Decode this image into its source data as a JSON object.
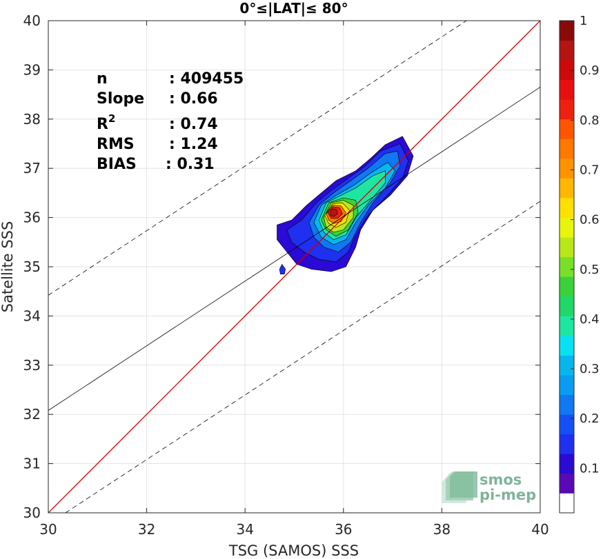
{
  "chart_data": {
    "type": "scatter",
    "title": "0°≤|LAT|≤ 80°",
    "xlabel": "TSG (SAMOS) SSS",
    "ylabel": "Satellite SSS",
    "xlim": [
      30,
      40
    ],
    "ylim": [
      30,
      40
    ],
    "xticks": [
      30,
      32,
      34,
      36,
      38,
      40
    ],
    "yticks": [
      30,
      31,
      32,
      33,
      34,
      35,
      36,
      37,
      38,
      39,
      40
    ],
    "grid": true,
    "statistics": [
      {
        "name": "n",
        "value": ": 409455"
      },
      {
        "name": "Slope",
        "value": ": 0.66"
      },
      {
        "name": "R2",
        "value": ": 0.74"
      },
      {
        "name": "RMS",
        "value": ": 1.24"
      },
      {
        "name": "BIAS",
        "value": ": 0.31"
      }
    ],
    "identity_line": {
      "slope": 1,
      "intercept": 0,
      "color": "#cc0000"
    },
    "fit_line": {
      "points": [
        [
          30,
          32.08
        ],
        [
          40,
          38.65
        ]
      ],
      "color": "#000000"
    },
    "error_bounds": [
      {
        "points": [
          [
            30,
            34.42
          ],
          [
            38.5,
            40.0
          ]
        ],
        "style": "dashed"
      },
      {
        "points": [
          [
            30.35,
            30.0
          ],
          [
            40,
            36.33
          ]
        ],
        "style": "dashed"
      }
    ],
    "density_contours": [
      {
        "level": 0.05,
        "color": "#2a0ad4",
        "points": [
          [
            34.65,
            35.85
          ],
          [
            34.95,
            35.95
          ],
          [
            35.25,
            36.25
          ],
          [
            35.55,
            36.5
          ],
          [
            35.85,
            36.75
          ],
          [
            36.25,
            36.95
          ],
          [
            36.55,
            37.2
          ],
          [
            36.85,
            37.48
          ],
          [
            37.2,
            37.65
          ],
          [
            37.42,
            37.25
          ],
          [
            37.3,
            36.85
          ],
          [
            36.95,
            36.45
          ],
          [
            36.6,
            36.15
          ],
          [
            36.35,
            35.75
          ],
          [
            36.25,
            35.4
          ],
          [
            36.05,
            35.0
          ],
          [
            35.75,
            34.9
          ],
          [
            35.35,
            34.95
          ],
          [
            35.05,
            35.05
          ],
          [
            34.85,
            35.3
          ],
          [
            34.65,
            35.55
          ]
        ]
      },
      {
        "level": 0.1,
        "color": "#1f30f0",
        "points": [
          [
            34.85,
            35.75
          ],
          [
            35.15,
            35.95
          ],
          [
            35.45,
            36.3
          ],
          [
            35.75,
            36.55
          ],
          [
            36.1,
            36.8
          ],
          [
            36.45,
            37.05
          ],
          [
            36.75,
            37.35
          ],
          [
            37.15,
            37.5
          ],
          [
            37.32,
            37.15
          ],
          [
            37.2,
            36.8
          ],
          [
            36.85,
            36.4
          ],
          [
            36.5,
            36.05
          ],
          [
            36.25,
            35.65
          ],
          [
            36.1,
            35.3
          ],
          [
            35.85,
            35.1
          ],
          [
            35.5,
            35.15
          ],
          [
            35.2,
            35.3
          ],
          [
            34.95,
            35.5
          ]
        ]
      },
      {
        "level": 0.2,
        "color": "#0f78f2",
        "points": [
          [
            35.3,
            35.9
          ],
          [
            35.5,
            36.25
          ],
          [
            35.8,
            36.5
          ],
          [
            36.15,
            36.75
          ],
          [
            36.5,
            37.0
          ],
          [
            36.85,
            37.3
          ],
          [
            37.1,
            37.35
          ],
          [
            37.15,
            37.05
          ],
          [
            36.95,
            36.7
          ],
          [
            36.6,
            36.3
          ],
          [
            36.35,
            35.9
          ],
          [
            36.15,
            35.5
          ],
          [
            35.9,
            35.3
          ],
          [
            35.6,
            35.4
          ],
          [
            35.4,
            35.6
          ]
        ]
      },
      {
        "level": 0.3,
        "color": "#08b6ee",
        "points": [
          [
            35.4,
            35.9
          ],
          [
            35.55,
            36.25
          ],
          [
            35.85,
            36.45
          ],
          [
            36.2,
            36.65
          ],
          [
            36.55,
            36.9
          ],
          [
            36.9,
            37.12
          ],
          [
            37.05,
            36.95
          ],
          [
            36.85,
            36.6
          ],
          [
            36.5,
            36.25
          ],
          [
            36.25,
            35.9
          ],
          [
            36.05,
            35.55
          ],
          [
            35.8,
            35.45
          ],
          [
            35.55,
            35.6
          ]
        ]
      },
      {
        "level": 0.4,
        "color": "#1ee6a0",
        "points": [
          [
            35.5,
            35.95
          ],
          [
            35.65,
            36.3
          ],
          [
            35.95,
            36.45
          ],
          [
            36.25,
            36.6
          ],
          [
            36.6,
            36.85
          ],
          [
            36.85,
            36.95
          ],
          [
            36.85,
            36.7
          ],
          [
            36.55,
            36.35
          ],
          [
            36.25,
            36.0
          ],
          [
            36.05,
            35.65
          ],
          [
            35.8,
            35.55
          ],
          [
            35.6,
            35.7
          ]
        ]
      },
      {
        "level": 0.5,
        "color": "#3ad23a",
        "points": [
          [
            35.55,
            35.95
          ],
          [
            35.7,
            36.3
          ],
          [
            36.0,
            36.4
          ],
          [
            36.25,
            36.35
          ],
          [
            36.3,
            36.1
          ],
          [
            36.1,
            35.75
          ],
          [
            35.85,
            35.62
          ],
          [
            35.65,
            35.75
          ]
        ]
      },
      {
        "level": 0.6,
        "color": "#b8e81a",
        "points": [
          [
            35.6,
            36.0
          ],
          [
            35.75,
            36.3
          ],
          [
            36.0,
            36.35
          ],
          [
            36.2,
            36.25
          ],
          [
            36.2,
            36.0
          ],
          [
            36.0,
            35.75
          ],
          [
            35.8,
            35.7
          ],
          [
            35.65,
            35.8
          ]
        ]
      },
      {
        "level": 0.7,
        "color": "#ffe000",
        "points": [
          [
            35.62,
            36.05
          ],
          [
            35.78,
            36.28
          ],
          [
            35.98,
            36.3
          ],
          [
            36.12,
            36.15
          ],
          [
            36.05,
            35.9
          ],
          [
            35.85,
            35.8
          ],
          [
            35.7,
            35.88
          ]
        ]
      },
      {
        "level": 0.8,
        "color": "#ff7800",
        "points": [
          [
            35.65,
            36.08
          ],
          [
            35.78,
            36.25
          ],
          [
            35.95,
            36.24
          ],
          [
            36.05,
            36.1
          ],
          [
            35.95,
            35.92
          ],
          [
            35.8,
            35.88
          ],
          [
            35.7,
            35.95
          ]
        ]
      },
      {
        "level": 0.9,
        "color": "#ee2010",
        "points": [
          [
            35.68,
            36.1
          ],
          [
            35.78,
            36.22
          ],
          [
            35.92,
            36.2
          ],
          [
            35.98,
            36.08
          ],
          [
            35.88,
            35.98
          ],
          [
            35.75,
            35.98
          ]
        ]
      },
      {
        "level": 1.0,
        "color": "#b41414",
        "points": [
          [
            35.72,
            36.1
          ],
          [
            35.78,
            36.18
          ],
          [
            35.86,
            36.16
          ],
          [
            35.88,
            36.08
          ],
          [
            35.8,
            36.02
          ],
          [
            35.74,
            36.04
          ]
        ]
      }
    ],
    "isolated_blob": {
      "color": "#1f30f0",
      "points": [
        [
          34.7,
          34.95
        ],
        [
          34.75,
          35.05
        ],
        [
          34.82,
          34.95
        ],
        [
          34.8,
          34.85
        ],
        [
          34.72,
          34.85
        ]
      ]
    },
    "colorbar": {
      "min": 0.05,
      "max": 1.0,
      "ticks": [
        0.1,
        0.2,
        0.3,
        0.4,
        0.5,
        0.6,
        0.7,
        0.8,
        0.9,
        1
      ],
      "tick_labels": [
        "0.1",
        "0.2",
        "0.3",
        "0.4",
        "0.5",
        "0.6",
        "0.7",
        "0.8",
        "0.9",
        "1"
      ],
      "colors": [
        "#ffffff",
        "#5a0ab4",
        "#2a0ad4",
        "#1f30f0",
        "#1450f4",
        "#0f78f2",
        "#0a9cf0",
        "#08b6ee",
        "#08e2f0",
        "#1ee6a0",
        "#20d86a",
        "#3ad23a",
        "#78e028",
        "#b8e81a",
        "#e8f40c",
        "#ffe000",
        "#ffb800",
        "#ff9400",
        "#ff7800",
        "#ff5500",
        "#ee2010",
        "#e61010",
        "#cc0a0a",
        "#b41414",
        "#8a0a0a"
      ]
    },
    "logo": {
      "line1": "smos",
      "line2": "pi-mep"
    }
  }
}
